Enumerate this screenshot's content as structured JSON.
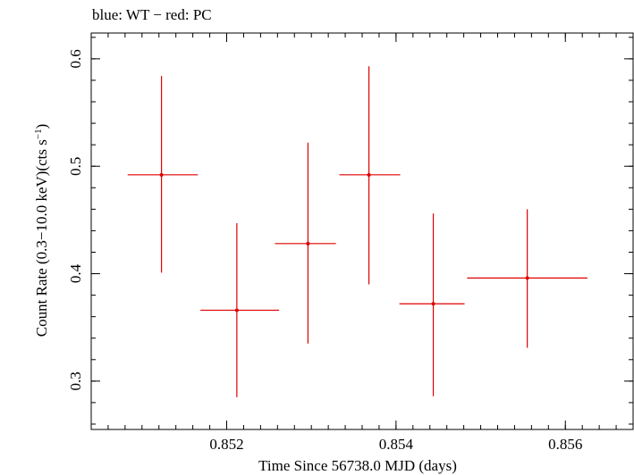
{
  "chart_data": {
    "type": "scatter",
    "title": "blue: WT − red: PC",
    "xlabel": "Time Since 56738.0 MJD (days)",
    "ylabel_main": "Count Rate (0.3−10.0 keV)(cts s",
    "ylabel_exp": "−1",
    "ylabel_close": ")",
    "xlim": [
      0.8504,
      0.8568
    ],
    "ylim": [
      0.255,
      0.624
    ],
    "x_ticks": [
      0.852,
      0.854,
      0.856
    ],
    "x_tick_labels": [
      "0.852",
      "0.854",
      "0.856"
    ],
    "y_ticks": [
      0.3,
      0.4,
      0.5,
      0.6
    ],
    "y_tick_labels": [
      "0.3",
      "0.4",
      "0.5",
      "0.6"
    ],
    "grid": false,
    "series": [
      {
        "color": "#e00000",
        "points": [
          {
            "x": 0.85123,
            "xlo": 0.85083,
            "xhi": 0.85166,
            "y": 0.492,
            "ylo": 0.401,
            "yhi": 0.584
          },
          {
            "x": 0.85212,
            "xlo": 0.85169,
            "xhi": 0.85262,
            "y": 0.366,
            "ylo": 0.285,
            "yhi": 0.447
          },
          {
            "x": 0.85296,
            "xlo": 0.85257,
            "xhi": 0.85329,
            "y": 0.428,
            "ylo": 0.335,
            "yhi": 0.522
          },
          {
            "x": 0.85368,
            "xlo": 0.85333,
            "xhi": 0.85405,
            "y": 0.492,
            "ylo": 0.39,
            "yhi": 0.593
          },
          {
            "x": 0.85444,
            "xlo": 0.85404,
            "xhi": 0.85481,
            "y": 0.372,
            "ylo": 0.286,
            "yhi": 0.456
          },
          {
            "x": 0.85555,
            "xlo": 0.85484,
            "xhi": 0.85626,
            "y": 0.396,
            "ylo": 0.331,
            "yhi": 0.46
          }
        ]
      }
    ]
  }
}
